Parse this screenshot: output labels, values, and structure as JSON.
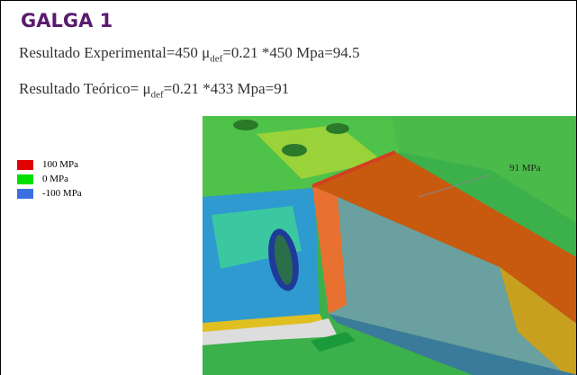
{
  "header": {
    "title": "GALGA 1"
  },
  "lines": [
    {
      "before": "Resultado Experimental=450 μ",
      "sub": "def",
      "after": "=0.21 *450 Mpa=94.5"
    },
    {
      "before": "Resultado Teórico= μ",
      "sub": "def",
      "after": "=0.21 *433 Mpa=91"
    }
  ],
  "legend": [
    {
      "label": "100 MPa",
      "color": "#e00000"
    },
    {
      "label": "0 MPa",
      "color": "#00e000"
    },
    {
      "label": "-100 MPa",
      "color": "#3a6fe0"
    }
  ],
  "annotation": "91 MPa"
}
